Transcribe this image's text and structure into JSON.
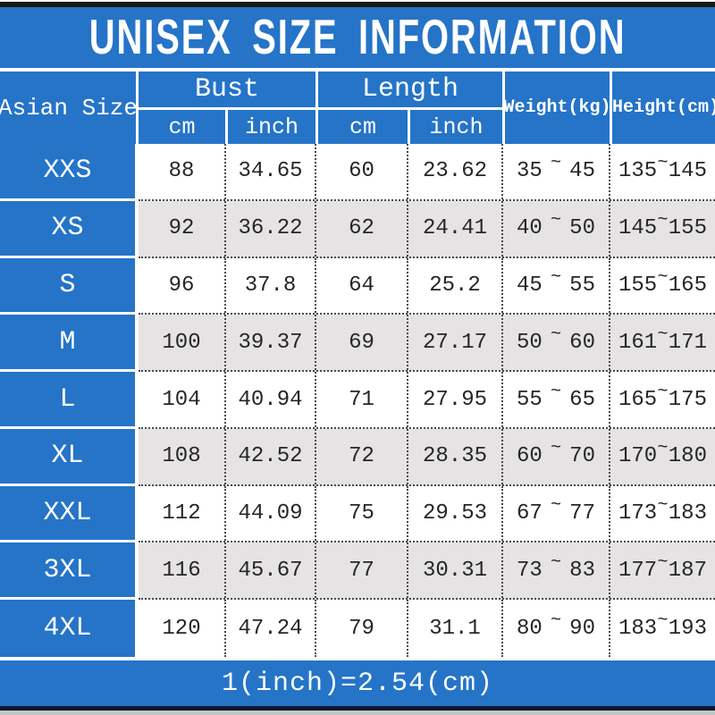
{
  "title": "UNISEX SIZE INFORMATION",
  "table": {
    "size_col_header": "Asian Size",
    "bust_header": "Bust",
    "length_header": "Length",
    "weight_header": "Weight(kg)",
    "height_header": "Height(cm)",
    "sub_headers": [
      "cm",
      "inch",
      "cm",
      "inch"
    ],
    "range_separator": "~",
    "rows": [
      {
        "size": "XXS",
        "bust_cm": "88",
        "bust_inch": "34.65",
        "length_cm": "60",
        "length_inch": "23.62",
        "weight_min": "35",
        "weight_max": "45",
        "height_min": "135",
        "height_max": "145"
      },
      {
        "size": "XS",
        "bust_cm": "92",
        "bust_inch": "36.22",
        "length_cm": "62",
        "length_inch": "24.41",
        "weight_min": "40",
        "weight_max": "50",
        "height_min": "145",
        "height_max": "155"
      },
      {
        "size": "S",
        "bust_cm": "96",
        "bust_inch": "37.8",
        "length_cm": "64",
        "length_inch": "25.2",
        "weight_min": "45",
        "weight_max": "55",
        "height_min": "155",
        "height_max": "165"
      },
      {
        "size": "M",
        "bust_cm": "100",
        "bust_inch": "39.37",
        "length_cm": "69",
        "length_inch": "27.17",
        "weight_min": "50",
        "weight_max": "60",
        "height_min": "161",
        "height_max": "171"
      },
      {
        "size": "L",
        "bust_cm": "104",
        "bust_inch": "40.94",
        "length_cm": "71",
        "length_inch": "27.95",
        "weight_min": "55",
        "weight_max": "65",
        "height_min": "165",
        "height_max": "175"
      },
      {
        "size": "XL",
        "bust_cm": "108",
        "bust_inch": "42.52",
        "length_cm": "72",
        "length_inch": "28.35",
        "weight_min": "60",
        "weight_max": "70",
        "height_min": "170",
        "height_max": "180"
      },
      {
        "size": "XXL",
        "bust_cm": "112",
        "bust_inch": "44.09",
        "length_cm": "75",
        "length_inch": "29.53",
        "weight_min": "67",
        "weight_max": "77",
        "height_min": "173",
        "height_max": "183"
      },
      {
        "size": "3XL",
        "bust_cm": "116",
        "bust_inch": "45.67",
        "length_cm": "77",
        "length_inch": "30.31",
        "weight_min": "73",
        "weight_max": "83",
        "height_min": "177",
        "height_max": "187"
      },
      {
        "size": "4XL",
        "bust_cm": "120",
        "bust_inch": "47.24",
        "length_cm": "79",
        "length_inch": "31.1",
        "weight_min": "80",
        "weight_max": "90",
        "height_min": "183",
        "height_max": "193"
      }
    ]
  },
  "footer_note": "1(inch)=2.54(cm)",
  "colors": {
    "header_blue": "#2574c8",
    "row_alt_gray": "#e5e3e3",
    "top_bar_black": "#191919",
    "bottom_bar_navy": "#111a2d",
    "bottom_strip_gray": "#c6c6c6",
    "text_dark": "#262626",
    "text_white": "#ffffff"
  }
}
